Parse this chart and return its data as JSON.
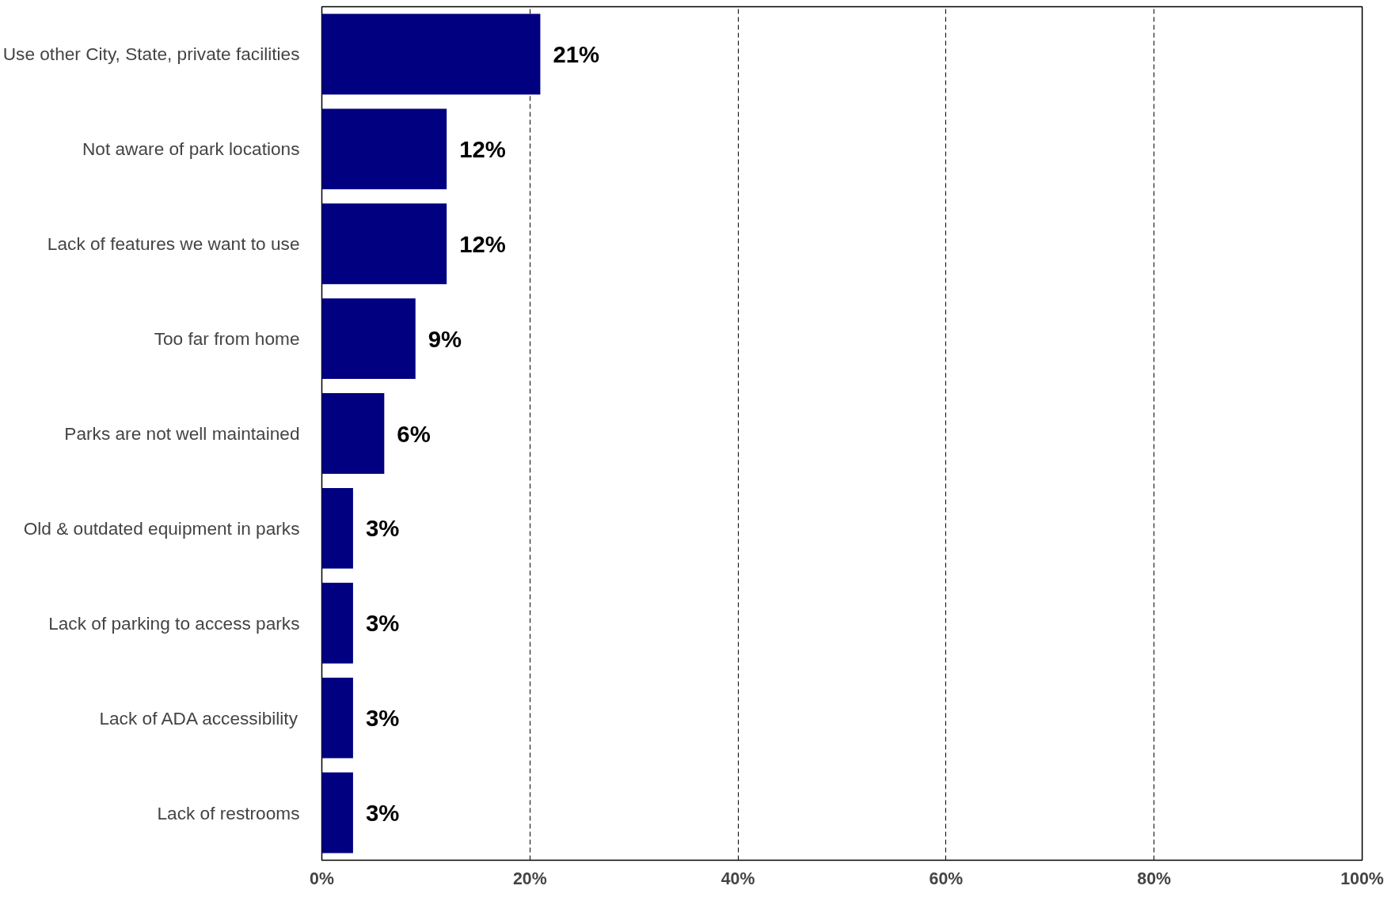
{
  "chart_data": {
    "type": "bar",
    "orientation": "horizontal",
    "categories": [
      "Use other City, State, private facilities",
      "Not aware of park locations",
      "Lack of features we want to use",
      "Too far from home",
      "Parks are not well maintained",
      "Old & outdated equipment in parks",
      "Lack of parking to access parks",
      "Lack of ADA accessibility",
      "Lack of restrooms"
    ],
    "values": [
      21,
      12,
      12,
      9,
      6,
      3,
      3,
      3,
      3
    ],
    "value_labels": [
      "21%",
      "12%",
      "12%",
      "9%",
      "6%",
      "3%",
      "3%",
      "3%",
      "3%"
    ],
    "color": "#000080",
    "xlim": [
      0,
      100
    ],
    "xticks": [
      {
        "value": 0,
        "label": "0%"
      },
      {
        "value": 20,
        "label": "20%"
      },
      {
        "value": 40,
        "label": "40%"
      },
      {
        "value": 60,
        "label": "60%"
      },
      {
        "value": 80,
        "label": "80%"
      },
      {
        "value": 100,
        "label": "100%"
      }
    ],
    "grid": "x",
    "line_style": "dashed"
  }
}
